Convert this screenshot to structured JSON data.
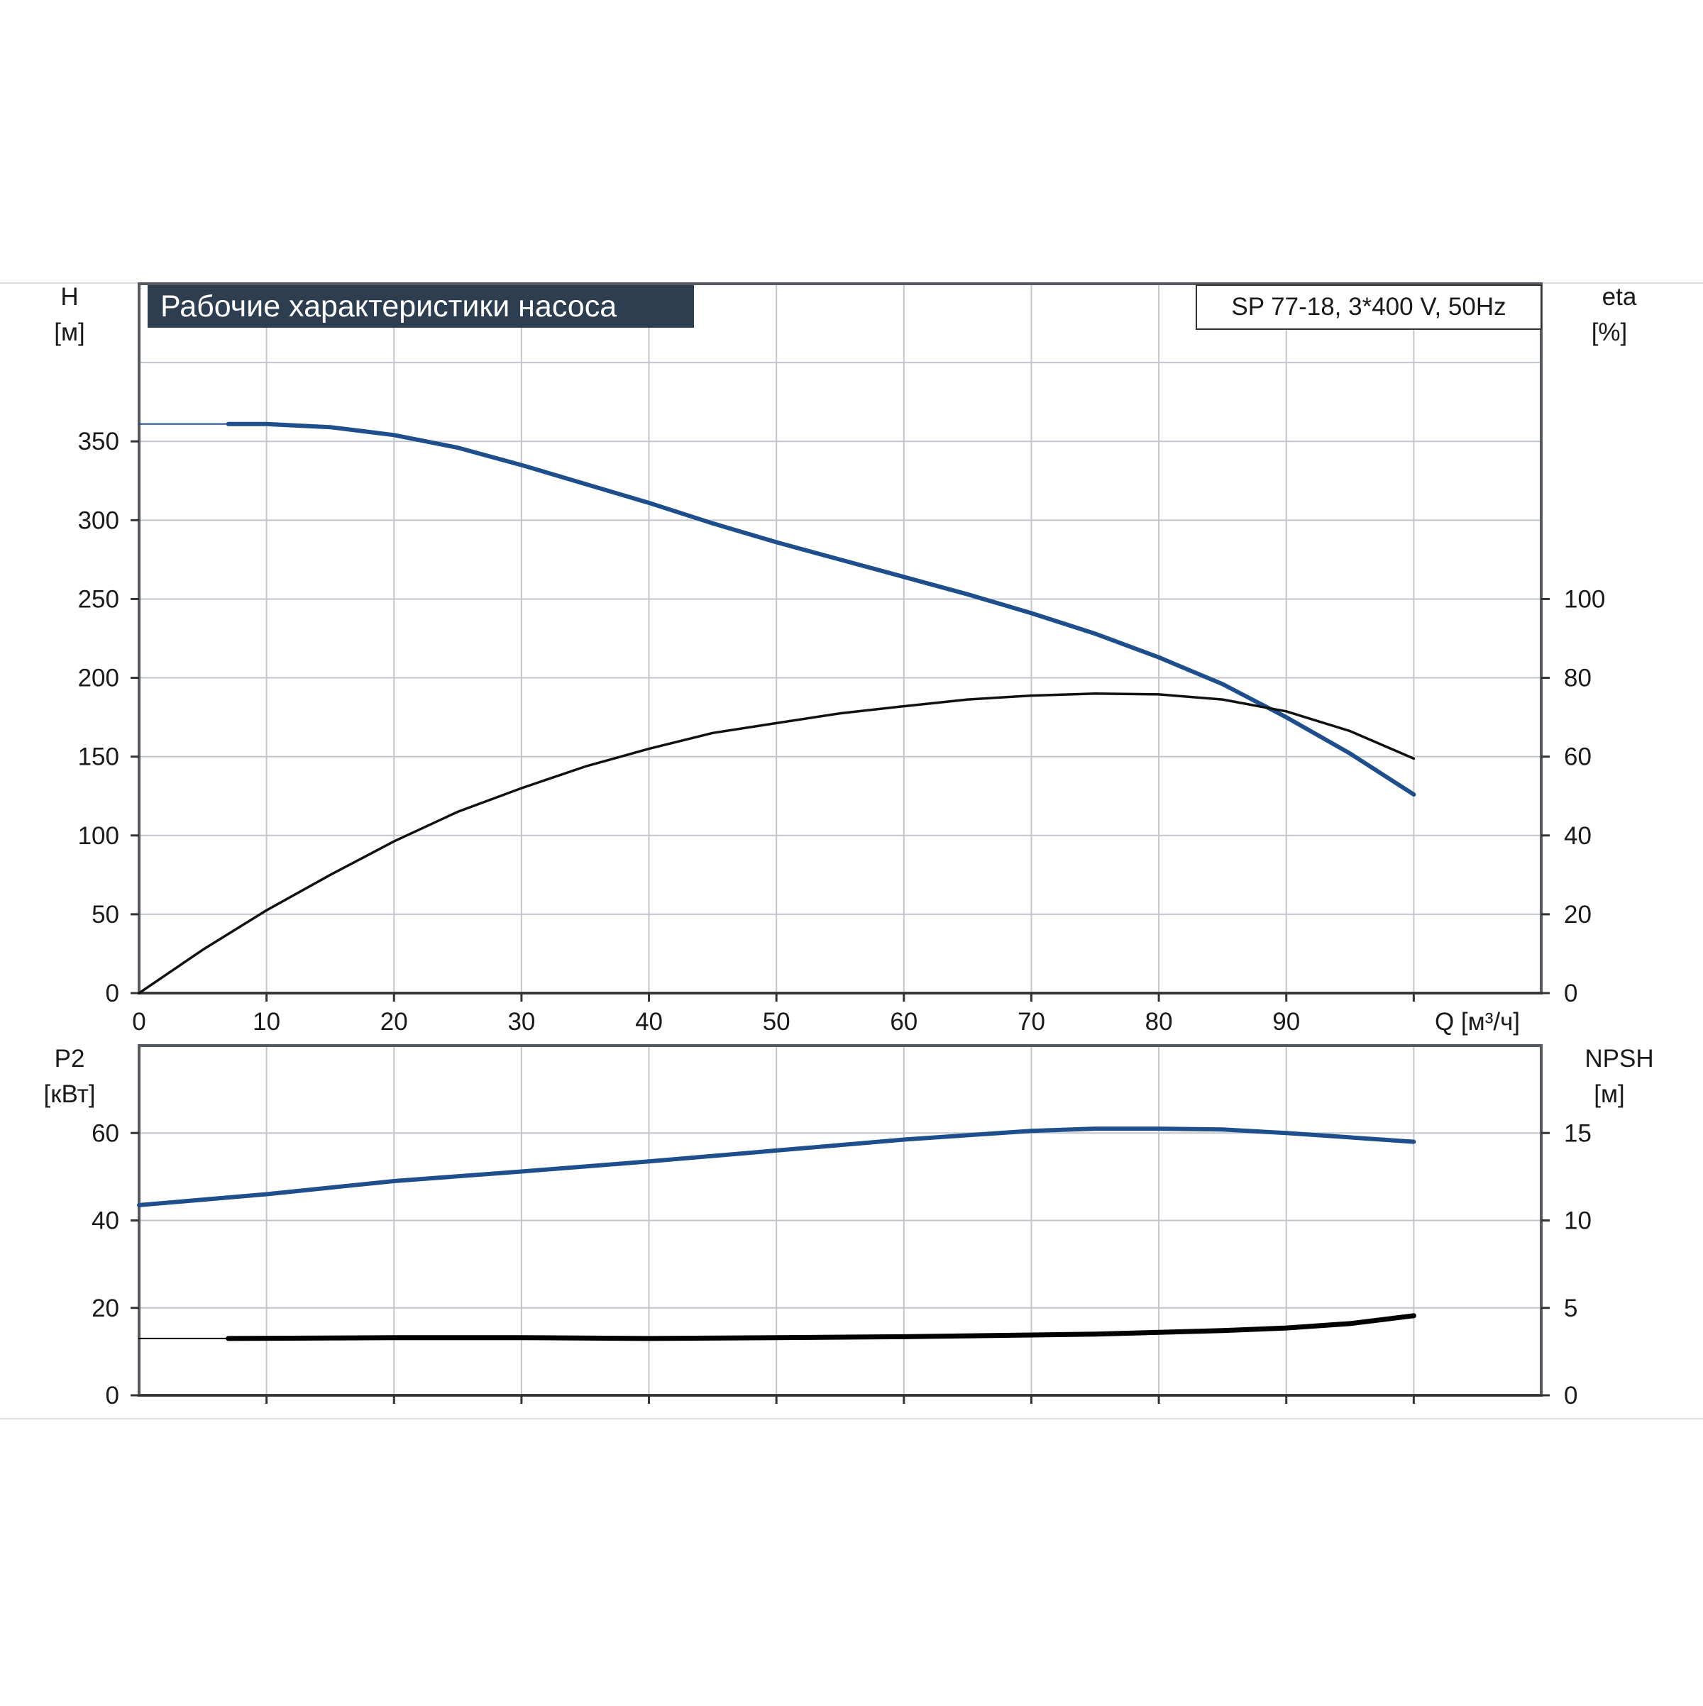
{
  "chart_data": [
    {
      "type": "line",
      "title": "Рабочие характеристики насоса",
      "model_label": "SP 77-18, 3*400 V, 50Hz",
      "xlabel": "Q [м³/ч]",
      "x_ticks": [
        "0",
        "10",
        "20",
        "30",
        "40",
        "50",
        "60",
        "70",
        "80",
        "90"
      ],
      "xlim": [
        0,
        110
      ],
      "left_axis": {
        "label_top": "H",
        "label_unit": "[м]",
        "ylim": [
          0,
          450
        ],
        "ticks": [
          "0",
          "50",
          "100",
          "150",
          "200",
          "250",
          "300",
          "350"
        ]
      },
      "right_axis": {
        "label_top": "eta",
        "label_unit": "[%]",
        "ylim": [
          0,
          180
        ],
        "ticks": [
          "0",
          "20",
          "40",
          "60",
          "80",
          "100"
        ]
      },
      "grid": true,
      "series": [
        {
          "axis": "left",
          "color": "#1f4e8c",
          "thin_x": [
            0,
            7
          ],
          "x": [
            7,
            10,
            15,
            20,
            25,
            30,
            35,
            40,
            45,
            50,
            55,
            60,
            65,
            70,
            75,
            80,
            85,
            90,
            95,
            100
          ],
          "y": [
            361,
            361,
            359,
            354,
            346,
            335,
            323,
            311,
            298,
            286,
            275,
            264,
            253,
            241,
            228,
            213,
            196,
            175,
            152,
            126
          ]
        },
        {
          "axis": "right",
          "color": "#111111",
          "x": [
            0,
            5,
            10,
            15,
            20,
            25,
            30,
            35,
            40,
            45,
            50,
            55,
            60,
            65,
            70,
            75,
            80,
            85,
            90,
            95,
            100
          ],
          "y": [
            0,
            11,
            21,
            30,
            38.5,
            46,
            52,
            57.5,
            62,
            66,
            68.5,
            71,
            72.8,
            74.5,
            75.5,
            76,
            75.8,
            74.5,
            71.5,
            66.5,
            59.5
          ]
        }
      ]
    },
    {
      "type": "line",
      "left_axis": {
        "label_top": "P2",
        "label_unit": "[кВт]",
        "ylim": [
          0,
          80
        ],
        "ticks": [
          "0",
          "20",
          "40",
          "60"
        ]
      },
      "right_axis": {
        "label_top": "NPSH",
        "label_unit": "[м]",
        "ylim": [
          0,
          20
        ],
        "ticks": [
          "0",
          "5",
          "10",
          "15"
        ]
      },
      "xlim": [
        0,
        110
      ],
      "grid": true,
      "series": [
        {
          "axis": "left",
          "color": "#1f4e8c",
          "x": [
            0,
            10,
            20,
            30,
            40,
            50,
            60,
            70,
            75,
            80,
            85,
            90,
            95,
            100
          ],
          "y": [
            43.5,
            46,
            49,
            51.2,
            53.5,
            56,
            58.5,
            60.5,
            61,
            61,
            60.8,
            60,
            59,
            58
          ]
        },
        {
          "axis": "right",
          "color": "#000000",
          "thin_x": [
            0,
            7
          ],
          "x": [
            7,
            20,
            30,
            40,
            50,
            60,
            70,
            75,
            80,
            85,
            90,
            95,
            100
          ],
          "y": [
            3.25,
            3.3,
            3.3,
            3.25,
            3.3,
            3.35,
            3.45,
            3.5,
            3.6,
            3.7,
            3.85,
            4.1,
            4.55
          ]
        }
      ]
    }
  ]
}
